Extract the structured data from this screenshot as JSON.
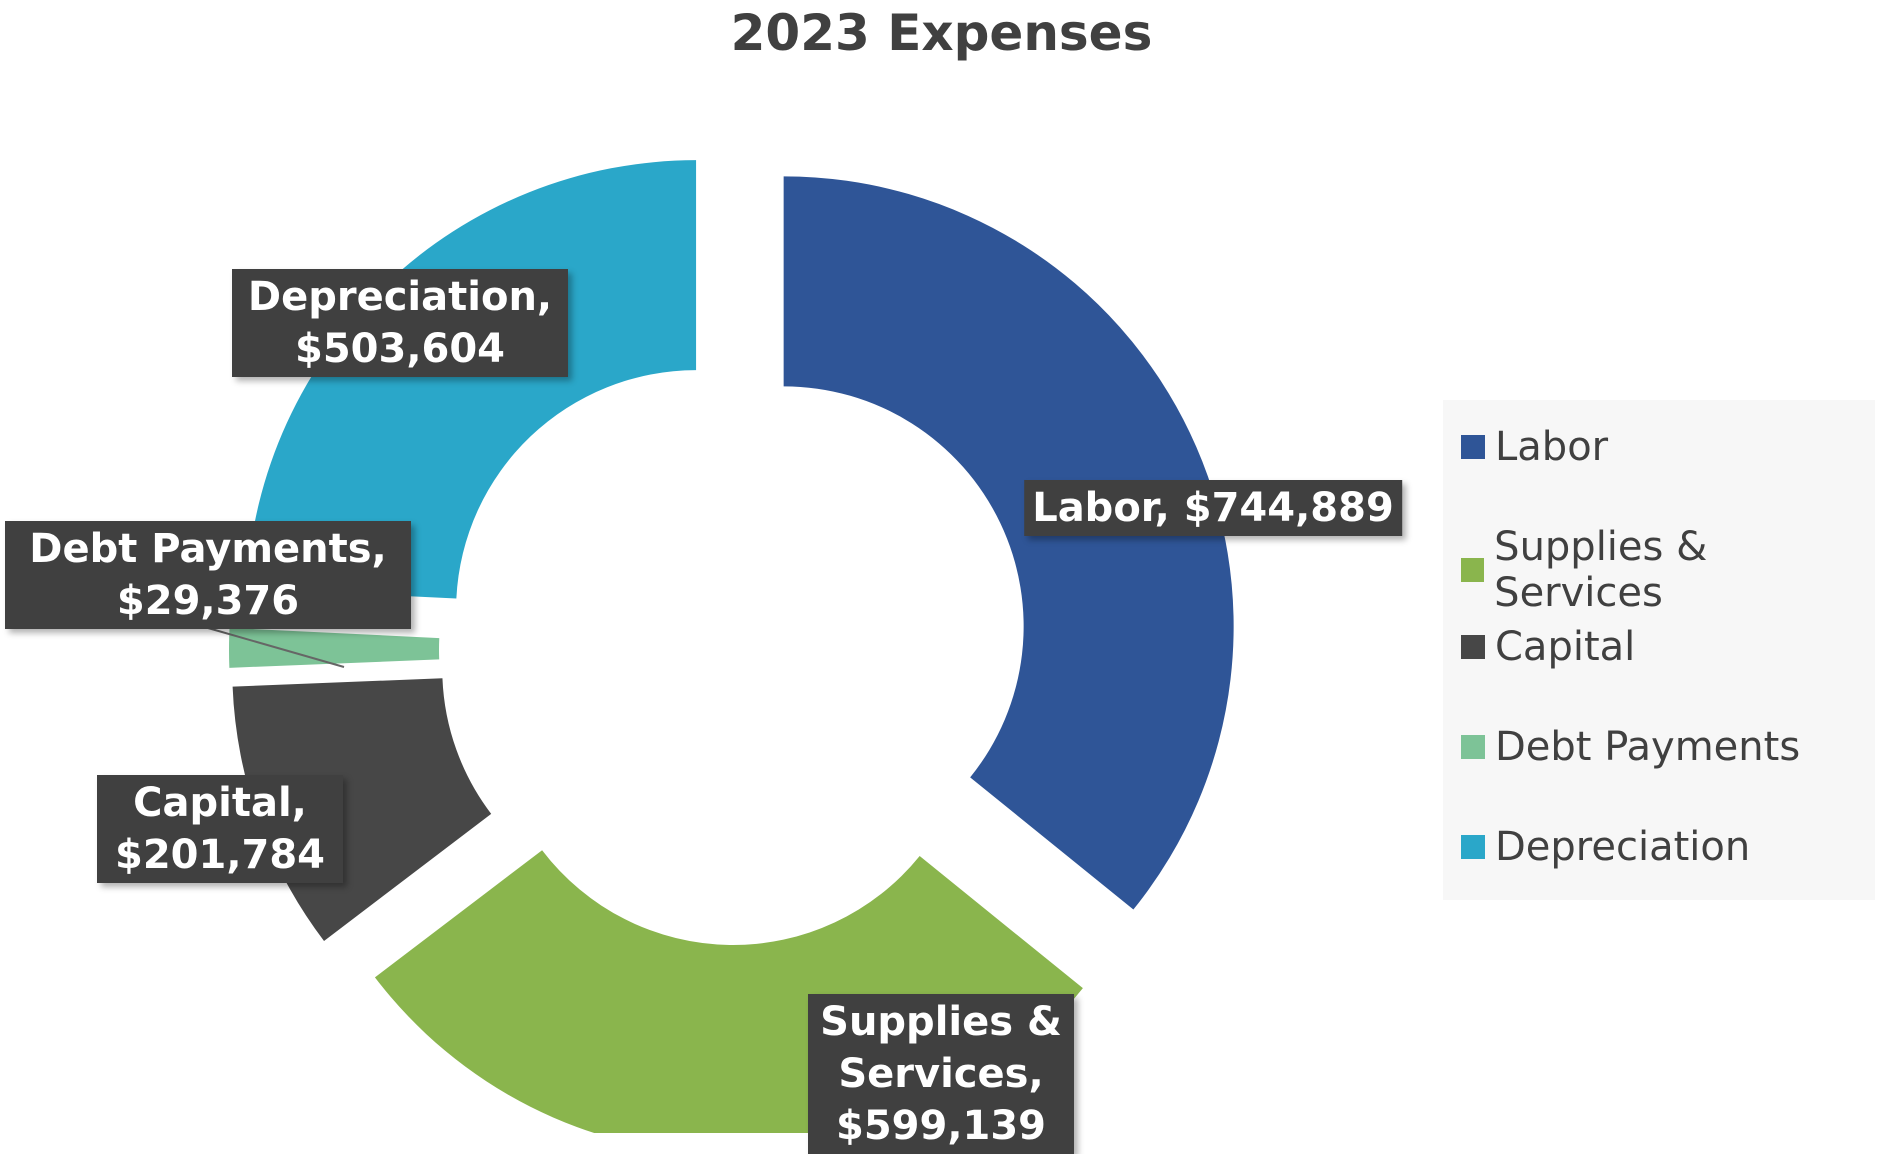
{
  "chart_data": {
    "type": "doughnut",
    "title": "2023 Expenses",
    "categories": [
      "Labor",
      "Supplies & Services",
      "Capital",
      "Debt Payments",
      "Depreciation"
    ],
    "values": [
      744889,
      599139,
      201784,
      29376,
      503604
    ],
    "value_labels": [
      "Labor, $744,889",
      "Supplies & Services, $599,139",
      "Capital, $201,784",
      "Debt Payments, $29,376",
      "Depreciation, $503,604"
    ],
    "colors": [
      "#2f5597",
      "#8ab54d",
      "#474747",
      "#7dc397",
      "#2aa7c9"
    ],
    "legend": "right"
  }
}
